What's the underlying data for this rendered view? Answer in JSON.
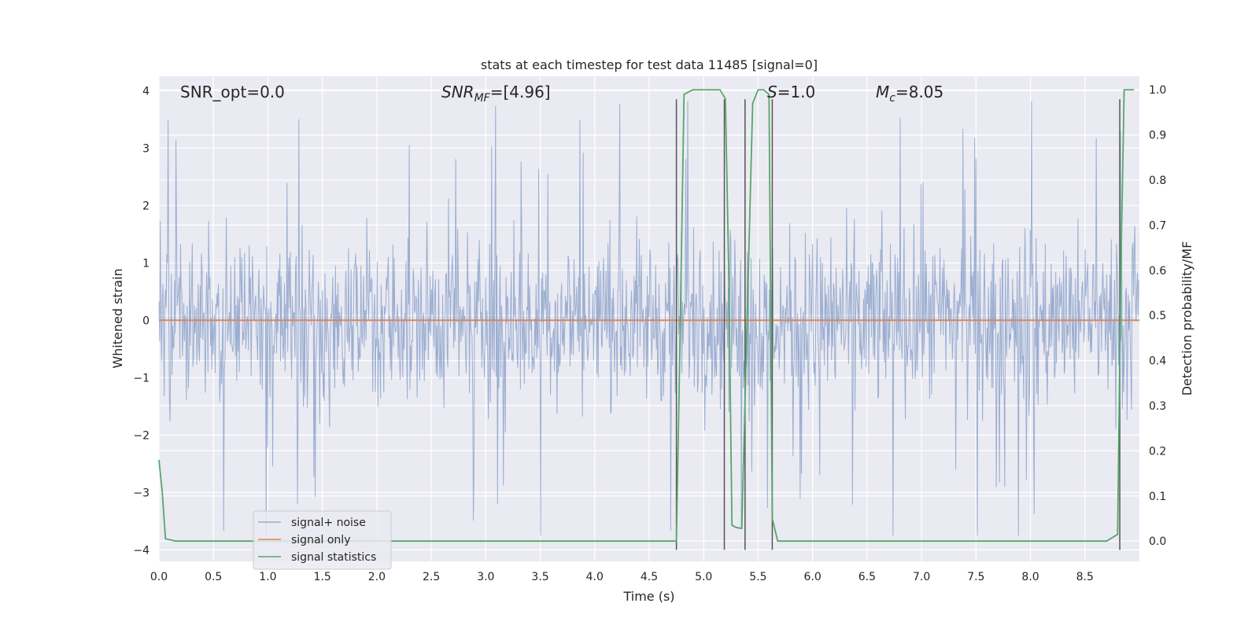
{
  "chart_data": {
    "type": "line",
    "title": "stats at each timestep for test data 11485 [signal=0]",
    "xlabel": "Time (s)",
    "ylabel": "Whitened strain",
    "ylabel_right": "Detection probability/MF",
    "xlim": [
      0,
      9.0
    ],
    "ylim": [
      -4.2,
      4.25
    ],
    "ylim_right": [
      -0.045,
      1.03
    ],
    "x_ticks": [
      "0.0",
      "0.5",
      "1.0",
      "1.5",
      "2.0",
      "2.5",
      "3.0",
      "3.5",
      "4.0",
      "4.5",
      "5.0",
      "5.5",
      "6.0",
      "6.5",
      "7.0",
      "7.5",
      "8.0",
      "8.5"
    ],
    "x_tick_values": [
      0,
      0.5,
      1,
      1.5,
      2,
      2.5,
      3,
      3.5,
      4,
      4.5,
      5,
      5.5,
      6,
      6.5,
      7,
      7.5,
      8,
      8.5
    ],
    "y_ticks": [
      "4",
      "3",
      "2",
      "1",
      "0",
      "−1",
      "−2",
      "−3",
      "−4"
    ],
    "y_tick_values": [
      4,
      3,
      2,
      1,
      0,
      -1,
      -2,
      -3,
      -4
    ],
    "y_right_ticks": [
      "1.0",
      "0.9",
      "0.8",
      "0.7",
      "0.6",
      "0.5",
      "0.4",
      "0.3",
      "0.2",
      "0.1",
      "0.0"
    ],
    "y_right_tick_values": [
      1.0,
      0.9,
      0.8,
      0.7,
      0.6,
      0.5,
      0.4,
      0.3,
      0.2,
      0.1,
      0.0
    ],
    "grid": true,
    "legend_placement": "lower-left",
    "annotations": {
      "snr_opt": "SNR_opt=0.0",
      "snr_mf_main": "SNR",
      "snr_mf_sub": "MF",
      "snr_mf_value": "=[4.96]",
      "s_main": "S",
      "s_value": "=1.0",
      "mc_main": "M",
      "mc_sub": "c",
      "mc_value": "=8.05"
    },
    "noise": {
      "amplitude_typical": 2.2,
      "max": 3.85,
      "min": -3.75
    },
    "series": [
      {
        "name": "signal+ noise",
        "color": "#4c72b0",
        "opacity": 0.5
      },
      {
        "name": "signal only",
        "color": "#dd8452",
        "x": [
          0,
          9.0
        ],
        "y": [
          0,
          0
        ]
      },
      {
        "name": "signal statistics",
        "color": "#55a868",
        "x": [
          0.0,
          0.03,
          0.06,
          0.1,
          0.15,
          0.2,
          4.7,
          4.75,
          4.78,
          4.82,
          4.9,
          5.0,
          5.1,
          5.15,
          5.2,
          5.23,
          5.26,
          5.3,
          5.35,
          5.4,
          5.45,
          5.5,
          5.55,
          5.6,
          5.63,
          5.68,
          5.75,
          5.8,
          8.7,
          8.8,
          8.83,
          8.86,
          8.9,
          8.95
        ],
        "y": [
          0.18,
          0.11,
          0.005,
          0.003,
          0.0,
          0.0,
          0.0,
          0.0,
          0.4,
          0.99,
          1.0,
          1.0,
          1.0,
          1.0,
          0.98,
          0.6,
          0.035,
          0.03,
          0.028,
          0.5,
          0.97,
          1.0,
          1.0,
          0.99,
          0.05,
          0.0,
          0.0,
          0.0,
          0.0,
          0.015,
          0.6,
          1.0,
          1.0,
          1.0
        ]
      }
    ],
    "vertical_lines_x": [
      4.75,
      5.19,
      5.38,
      5.63,
      8.82
    ],
    "vertical_line_color": "#555555"
  }
}
